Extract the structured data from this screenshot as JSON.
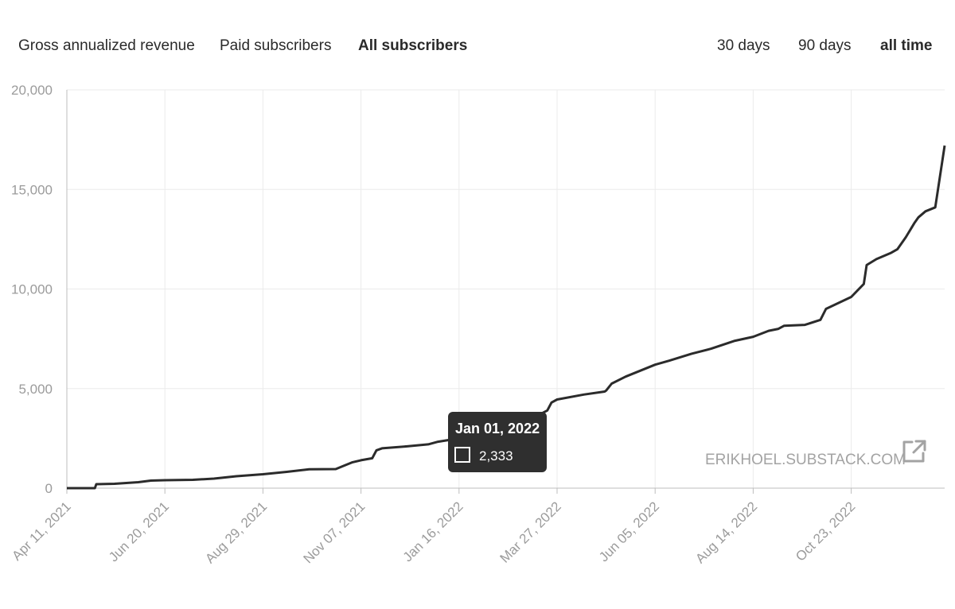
{
  "metric_tabs": [
    {
      "label": "Gross annualized revenue",
      "active": false
    },
    {
      "label": "Paid subscribers",
      "active": false
    },
    {
      "label": "All subscribers",
      "active": true
    }
  ],
  "range_tabs": [
    {
      "label": "30 days",
      "active": false
    },
    {
      "label": "90 days",
      "active": false
    },
    {
      "label": "all time",
      "active": true
    }
  ],
  "watermark": "ERIKHOEL.SUBSTACK.COM",
  "tooltip": {
    "date": "Jan 01, 2022",
    "value": "2,333"
  },
  "colors": {
    "line": "#2b2b2b",
    "grid": "#ebebeb",
    "axis": "#bdbdbd",
    "tooltip_bg": "#2f2f2f",
    "tab_text": "#2a2a2a",
    "tick_text": "#9b9b9b"
  },
  "icons": {
    "external_link": "external-link-icon",
    "legend_swatch": "square-icon"
  },
  "chart_data": {
    "type": "line",
    "x_tick_labels": [
      "Apr 11, 2021",
      "Jun 20, 2021",
      "Aug 29, 2021",
      "Nov 07, 2021",
      "Jan 16, 2022",
      "Mar 27, 2022",
      "Jun 05, 2022",
      "Aug 14, 2022",
      "Oct 23, 2022"
    ],
    "y_tick_labels": [
      "20,000",
      "15,000",
      "10,000",
      "5,000",
      "0"
    ],
    "y_ticks": [
      20000,
      15000,
      10000,
      5000,
      0
    ],
    "ylim": [
      0,
      20000
    ],
    "xlim": [
      "2021-04-11",
      "2022-12-31"
    ],
    "grid": true,
    "series": [
      {
        "x": [
          "2021-04-11",
          "2021-05-01",
          "2021-05-02",
          "2021-05-15",
          "2021-06-01",
          "2021-06-10",
          "2021-06-20",
          "2021-07-10",
          "2021-07-25",
          "2021-08-10",
          "2021-08-29",
          "2021-09-15",
          "2021-10-01",
          "2021-10-20",
          "2021-10-25",
          "2021-11-01",
          "2021-11-07",
          "2021-11-15",
          "2021-11-18",
          "2021-11-22",
          "2021-12-10",
          "2021-12-25",
          "2022-01-01",
          "2022-01-16",
          "2022-02-01",
          "2022-02-20",
          "2022-03-01",
          "2022-03-20",
          "2022-03-23",
          "2022-03-27",
          "2022-04-15",
          "2022-04-30",
          "2022-05-01",
          "2022-05-05",
          "2022-05-15",
          "2022-06-05",
          "2022-06-15",
          "2022-07-01",
          "2022-07-15",
          "2022-08-01",
          "2022-08-14",
          "2022-08-25",
          "2022-09-01",
          "2022-09-05",
          "2022-09-20",
          "2022-10-01",
          "2022-10-05",
          "2022-10-23",
          "2022-11-01",
          "2022-11-03",
          "2022-11-10",
          "2022-11-20",
          "2022-11-25",
          "2022-12-01",
          "2022-12-07",
          "2022-12-10",
          "2022-12-15",
          "2022-12-22",
          "2022-12-31"
        ],
        "y": [
          0,
          0,
          200,
          220,
          300,
          380,
          400,
          420,
          480,
          600,
          700,
          820,
          950,
          960,
          1100,
          1300,
          1400,
          1500,
          1900,
          2000,
          2100,
          2200,
          2333,
          2500,
          2650,
          2900,
          3200,
          3900,
          4300,
          4450,
          4700,
          4850,
          4900,
          5250,
          5600,
          6200,
          6400,
          6750,
          7000,
          7400,
          7600,
          7900,
          8000,
          8150,
          8200,
          8450,
          9000,
          9600,
          10250,
          11200,
          11500,
          11800,
          12000,
          12600,
          13300,
          13600,
          13900,
          14100,
          17200
        ]
      }
    ]
  }
}
